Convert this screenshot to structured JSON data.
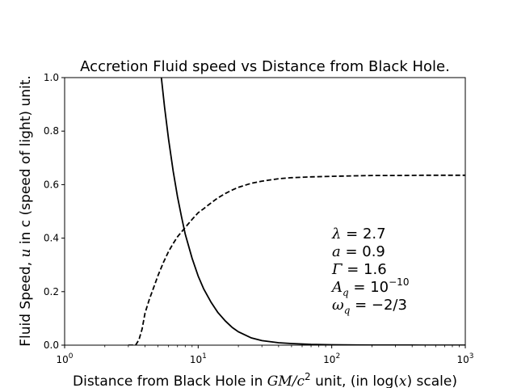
{
  "chart_data": {
    "type": "line",
    "title": "Accretion Fluid speed vs Distance from Black Hole.",
    "xlabel": {
      "prefix": "Distance from Black Hole in ",
      "unit_var": "GM/c",
      "unit_exp": "2",
      "middle": " unit, (in log(",
      "var": "x",
      "suffix": ") scale)"
    },
    "ylabel": {
      "prefix": "Fluid Speed, ",
      "var": "u",
      "suffix": " in c (speed of light) unit."
    },
    "x_scale": "log",
    "xlim": [
      1,
      1000
    ],
    "ylim": [
      0,
      1.0
    ],
    "x_ticks": [
      {
        "base": "10",
        "exp": "0",
        "value": 1
      },
      {
        "base": "10",
        "exp": "1",
        "value": 10
      },
      {
        "base": "10",
        "exp": "2",
        "value": 100
      },
      {
        "base": "10",
        "exp": "3",
        "value": 1000
      }
    ],
    "y_ticks": [
      {
        "label": "0.0",
        "value": 0.0
      },
      {
        "label": "0.2",
        "value": 0.2
      },
      {
        "label": "0.4",
        "value": 0.4
      },
      {
        "label": "0.6",
        "value": 0.6
      },
      {
        "label": "0.8",
        "value": 0.8
      },
      {
        "label": "1.0",
        "value": 1.0
      }
    ],
    "grid": false,
    "series": [
      {
        "style": "solid",
        "color": "#000000",
        "x": [
          5.3,
          5.6,
          6.0,
          6.5,
          7.0,
          7.5,
          8.0,
          9.0,
          10.0,
          11.0,
          12.5,
          14.0,
          16.0,
          18.0,
          20.0,
          25.0,
          30.0,
          40.0,
          50.0,
          70.0,
          100.0,
          150.0,
          200.0,
          300.0,
          500.0,
          700.0,
          1000.0
        ],
        "y": [
          1.0,
          0.89,
          0.77,
          0.65,
          0.555,
          0.48,
          0.415,
          0.325,
          0.258,
          0.21,
          0.16,
          0.123,
          0.09,
          0.066,
          0.05,
          0.027,
          0.017,
          0.009,
          0.006,
          0.003,
          0.0015,
          0.0007,
          0.0004,
          0.0002,
          0.0001,
          5e-05,
          0.0
        ]
      },
      {
        "style": "dashed",
        "color": "#000000",
        "x": [
          3.0,
          3.4,
          3.6,
          3.8,
          4.0,
          4.3,
          4.6,
          5.0,
          5.5,
          6.0,
          6.5,
          7.0,
          8.0,
          9.0,
          10.0,
          11.0,
          12.0,
          14.0,
          16.0,
          18.0,
          20.0,
          25.0,
          30.0,
          40.0,
          50.0,
          70.0,
          100.0,
          150.0,
          200.0,
          300.0,
          500.0,
          700.0,
          1000.0
        ],
        "y": [
          0.0,
          0.0,
          0.02,
          0.06,
          0.12,
          0.17,
          0.21,
          0.26,
          0.31,
          0.35,
          0.38,
          0.405,
          0.44,
          0.47,
          0.495,
          0.51,
          0.525,
          0.55,
          0.567,
          0.58,
          0.59,
          0.605,
          0.613,
          0.622,
          0.626,
          0.629,
          0.631,
          0.633,
          0.634,
          0.634,
          0.635,
          0.635,
          0.635
        ]
      }
    ],
    "annotations": [
      {
        "sym": "λ",
        "sub": "",
        "sup": "",
        "rhs": " = 2.7",
        "rhs_sup": ""
      },
      {
        "sym": "a",
        "sub": "",
        "sup": "",
        "rhs": " = 0.9",
        "rhs_sup": ""
      },
      {
        "sym": "Γ",
        "sub": "",
        "sup": "",
        "rhs": " = 1.6",
        "rhs_sup": ""
      },
      {
        "sym": "A",
        "sub": "q",
        "sup": "",
        "rhs": " = 10",
        "rhs_sup": "−10"
      },
      {
        "sym": "ω",
        "sub": "q",
        "sup": "",
        "rhs": " = −2/3",
        "rhs_sup": ""
      }
    ]
  }
}
